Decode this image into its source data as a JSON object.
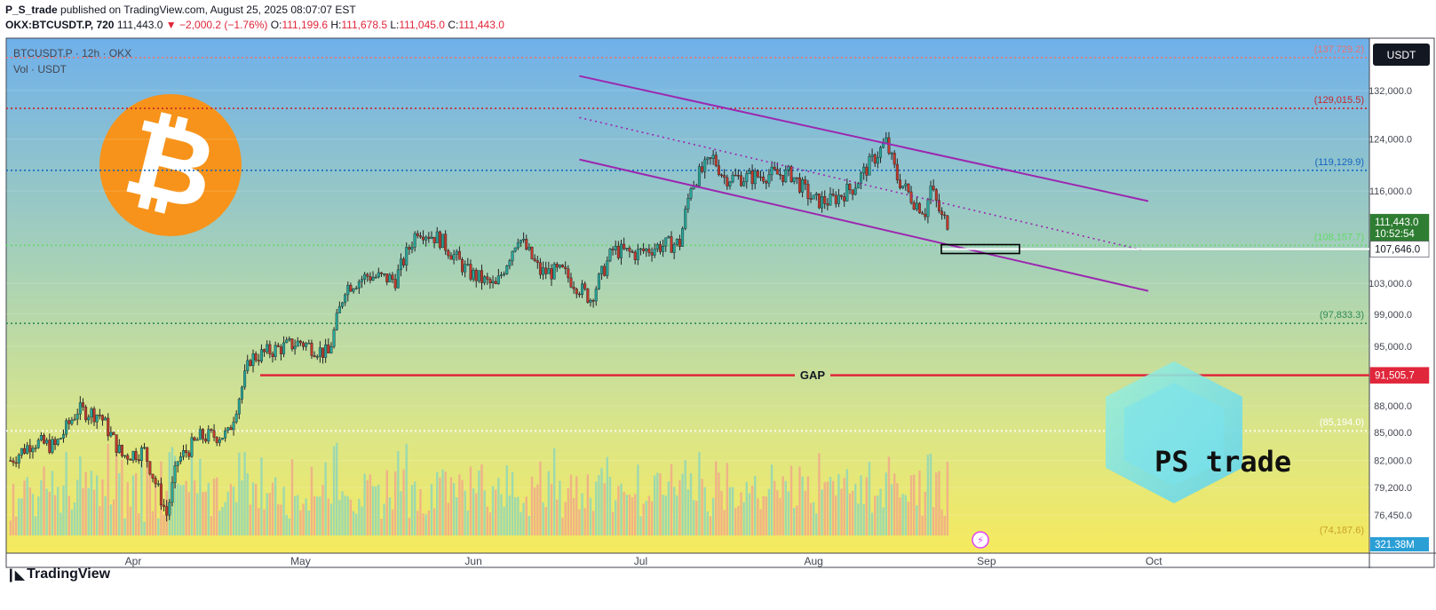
{
  "header": {
    "author": "P_S_trade",
    "published_text": "published on TradingView.com, August 25, 2025 08:07:07 EST",
    "symbol": "OKX:BTCUSDT.P, 720",
    "last": "111,443.0",
    "change": "−2,000.2 (−1.76%)",
    "o_label": "O:",
    "o_val": "111,199.6",
    "h_label": "H:",
    "h_val": "111,678.5",
    "l_label": "L:",
    "l_val": "111,045.0",
    "c_label": "C:",
    "c_val": "111,443.0"
  },
  "legend": {
    "line1": "BTCUSDT.P · 12h · OKX",
    "line2": "Vol · USDT"
  },
  "currency_button": "USDT",
  "footer": {
    "brand": "TradingView"
  },
  "watermark": {
    "text": "PS trade"
  },
  "gap_label": "GAP",
  "colors": {
    "bg_top": "#6fb0ea",
    "bg_bottom": "#f6ea5e",
    "up": "#26a69a",
    "down": "#c0392b",
    "channel": "#9c27b0",
    "gap_line": "#e0263a",
    "bitcoin": "#f7931a"
  },
  "chart_data": {
    "type": "candlestick",
    "symbol": "BTCUSDT.P",
    "timeframe": "12h",
    "exchange": "OKX",
    "x_ticks": [
      "Apr",
      "May",
      "Jun",
      "Jul",
      "Aug",
      "Sep",
      "Oct"
    ],
    "y_ticks": [
      "132,000.0",
      "124,000.0",
      "116,000.0",
      "103,000.0",
      "99,000.0",
      "95,000.0",
      "88,000.0",
      "85,000.0",
      "82,000.0",
      "79,200.0",
      "76,450.0"
    ],
    "y_scale": "log",
    "y_range": [
      73500,
      141000
    ],
    "price_path": [
      [
        "2025-03-10",
        82000
      ],
      [
        "2025-03-14",
        84000
      ],
      [
        "2025-03-18",
        83500
      ],
      [
        "2025-03-22",
        87500
      ],
      [
        "2025-03-26",
        87000
      ],
      [
        "2025-03-30",
        82500
      ],
      [
        "2025-04-03",
        83000
      ],
      [
        "2025-04-07",
        76500
      ],
      [
        "2025-04-09",
        82000
      ],
      [
        "2025-04-13",
        84500
      ],
      [
        "2025-04-18",
        84800
      ],
      [
        "2025-04-22",
        93500
      ],
      [
        "2025-04-26",
        94500
      ],
      [
        "2025-05-01",
        95500
      ],
      [
        "2025-05-06",
        94000
      ],
      [
        "2025-05-09",
        102500
      ],
      [
        "2025-05-13",
        104000
      ],
      [
        "2025-05-18",
        103500
      ],
      [
        "2025-05-22",
        110500
      ],
      [
        "2025-05-26",
        109000
      ],
      [
        "2025-05-31",
        104500
      ],
      [
        "2025-06-05",
        102500
      ],
      [
        "2025-06-09",
        109500
      ],
      [
        "2025-06-13",
        104500
      ],
      [
        "2025-06-17",
        104500
      ],
      [
        "2025-06-22",
        101000
      ],
      [
        "2025-06-26",
        107500
      ],
      [
        "2025-06-30",
        107000
      ],
      [
        "2025-07-04",
        108000
      ],
      [
        "2025-07-08",
        108500
      ],
      [
        "2025-07-10",
        117000
      ],
      [
        "2025-07-14",
        121000
      ],
      [
        "2025-07-16",
        118000
      ],
      [
        "2025-07-20",
        118000
      ],
      [
        "2025-07-24",
        118500
      ],
      [
        "2025-07-28",
        118500
      ],
      [
        "2025-08-01",
        114500
      ],
      [
        "2025-08-04",
        114500
      ],
      [
        "2025-08-08",
        116500
      ],
      [
        "2025-08-11",
        120000
      ],
      [
        "2025-08-14",
        123500
      ],
      [
        "2025-08-16",
        118000
      ],
      [
        "2025-08-19",
        114500
      ],
      [
        "2025-08-21",
        113000
      ],
      [
        "2025-08-22",
        116500
      ],
      [
        "2025-08-24",
        112000
      ],
      [
        "2025-08-25",
        111443
      ]
    ],
    "levels": [
      {
        "value": 137729.2,
        "label": "(137,729.2)",
        "style": "dotted",
        "color": "#e57373"
      },
      {
        "value": 129015.5,
        "label": "(129,015.5)",
        "style": "dotted",
        "color": "#c62828"
      },
      {
        "value": 119129.9,
        "label": "(119,129.9)",
        "style": "dotted",
        "color": "#1565c0"
      },
      {
        "value": 108157.7,
        "label": "(108,157.7)",
        "style": "dotted",
        "color": "#66d96b"
      },
      {
        "value": 97833.3,
        "label": "(97,833.3)",
        "style": "dotted",
        "color": "#2e8b57"
      },
      {
        "value": 85194.0,
        "label": "(85,194.0)",
        "style": "dotted",
        "color": "#ffffff"
      },
      {
        "value": 74187.6,
        "label": "(74,187.6)",
        "style": "none",
        "color": "#c9a227"
      }
    ],
    "price_tags": [
      {
        "value": 111443.0,
        "label": "111,443.0",
        "sub": "10:52:54",
        "bg": "#2e7d32",
        "color": "#ffffff"
      },
      {
        "value": 107646.0,
        "label": "107,646.0",
        "bg": "#ffffff",
        "color": "#131722"
      },
      {
        "value": 91505.7,
        "label": "91,505.7",
        "bg": "#e0263a",
        "color": "#ffffff"
      }
    ],
    "volume_tag": "321.38M",
    "gap_level": 91505.7,
    "support_zone_level": 107646.0,
    "channel": {
      "upper": [
        [
          "2025-06-20",
          134500
        ],
        [
          "2025-09-30",
          114500
        ]
      ],
      "lower": [
        [
          "2025-06-20",
          120800
        ],
        [
          "2025-09-30",
          102000
        ]
      ],
      "mid": [
        [
          "2025-06-20",
          127500
        ],
        [
          "2025-09-29",
          107500
        ]
      ]
    }
  }
}
